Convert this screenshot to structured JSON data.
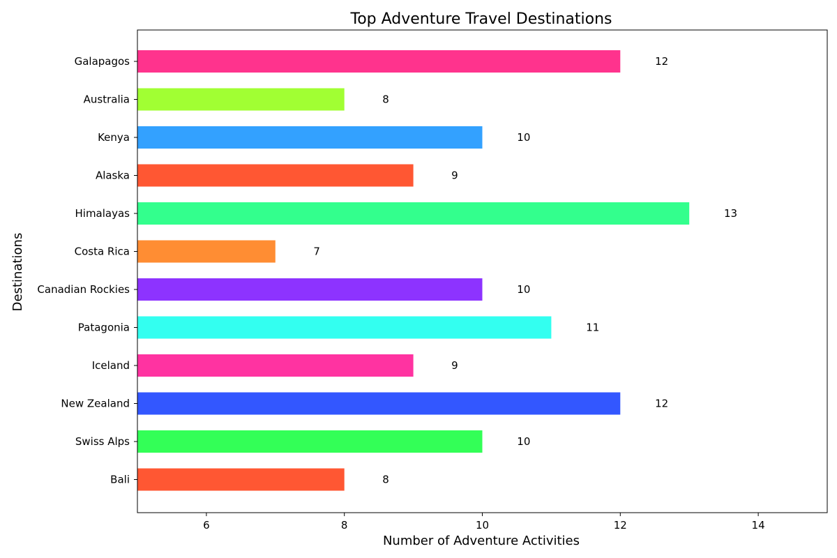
{
  "chart_data": {
    "type": "bar",
    "orientation": "horizontal",
    "title": "Top Adventure Travel Destinations",
    "xlabel": "Number of Adventure Activities",
    "ylabel": "Destinations",
    "xlim": [
      5,
      15
    ],
    "xticks": [
      6,
      8,
      10,
      12,
      14
    ],
    "grid": false,
    "categories": [
      "Bali",
      "Swiss Alps",
      "New Zealand",
      "Iceland",
      "Patagonia",
      "Canadian Rockies",
      "Costa Rica",
      "Himalayas",
      "Alaska",
      "Kenya",
      "Australia",
      "Galapagos"
    ],
    "values": [
      8,
      10,
      12,
      9,
      11,
      10,
      7,
      13,
      9,
      10,
      8,
      12
    ],
    "colors": [
      "#FF5733",
      "#33FF57",
      "#3357FF",
      "#FF33A1",
      "#33FFF0",
      "#8D33FF",
      "#FF8D33",
      "#33FF8D",
      "#FF5733",
      "#33A1FF",
      "#A1FF33",
      "#FF338D"
    ],
    "value_labels": [
      "8",
      "10",
      "12",
      "9",
      "11",
      "10",
      "7",
      "13",
      "9",
      "10",
      "8",
      "12"
    ]
  }
}
